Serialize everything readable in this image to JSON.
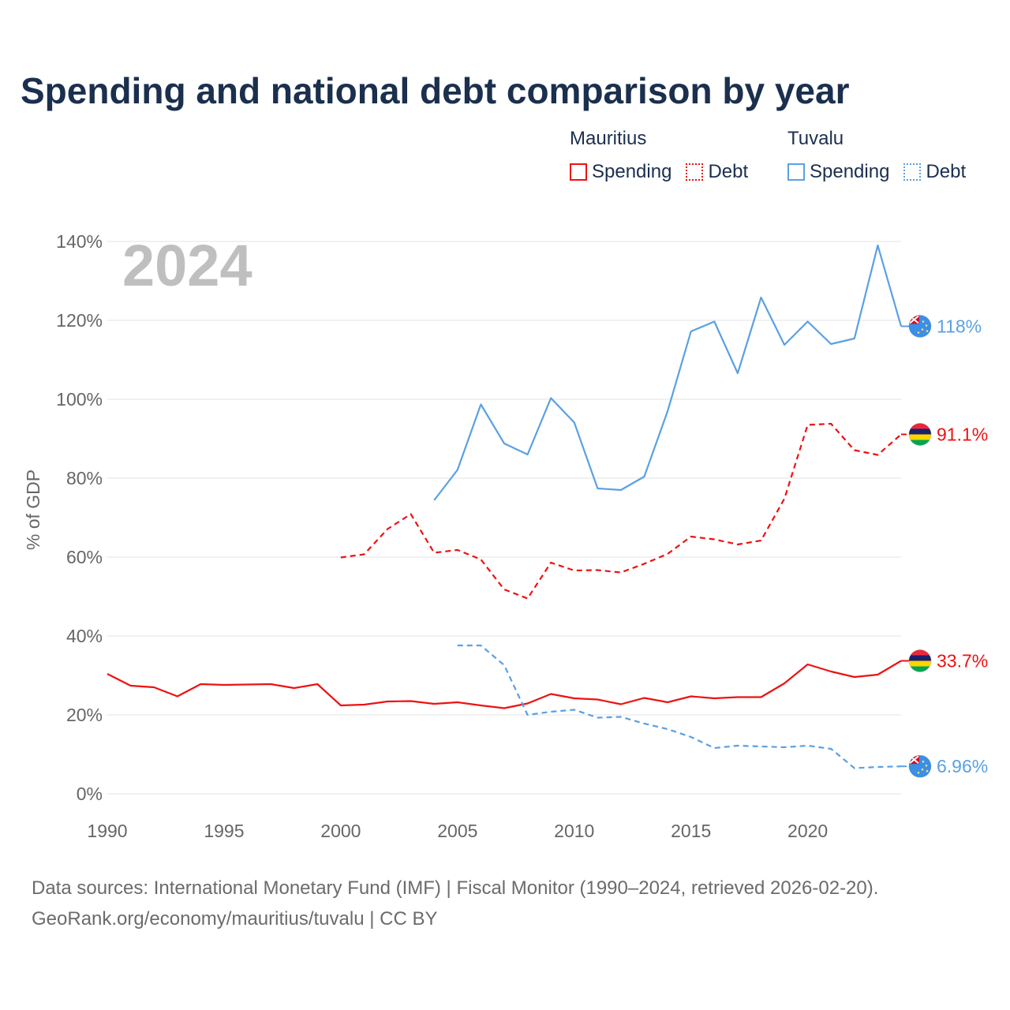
{
  "title": "Spending and national debt comparison by year",
  "legend": {
    "groups": [
      {
        "country": "Mauritius",
        "color": "#ee1111",
        "items": [
          {
            "label": "Spending",
            "style": "solid"
          },
          {
            "label": "Debt",
            "style": "dotted"
          }
        ]
      },
      {
        "country": "Tuvalu",
        "color": "#5aa0e4",
        "items": [
          {
            "label": "Spending",
            "style": "solid"
          },
          {
            "label": "Debt",
            "style": "dotted"
          }
        ]
      }
    ]
  },
  "chart_data": {
    "type": "line",
    "year_label": "2024",
    "ylabel": "% of GDP",
    "xlim": [
      1990,
      2024
    ],
    "ylim": [
      0,
      140
    ],
    "x_ticks": [
      1990,
      1995,
      2000,
      2005,
      2010,
      2015,
      2020
    ],
    "y_ticks": [
      0,
      20,
      40,
      60,
      80,
      100,
      120,
      140
    ],
    "y_tick_labels": [
      "0%",
      "20%",
      "40%",
      "60%",
      "80%",
      "100%",
      "120%",
      "140%"
    ],
    "grid": true,
    "series": [
      {
        "name": "Mauritius Spending",
        "country": "Mauritius",
        "color": "#ee1111",
        "dashed": false,
        "end_label": "33.7%",
        "x": [
          1990,
          1991,
          1992,
          1993,
          1994,
          1995,
          1996,
          1997,
          1998,
          1999,
          2000,
          2001,
          2002,
          2003,
          2004,
          2005,
          2006,
          2007,
          2008,
          2009,
          2010,
          2011,
          2012,
          2013,
          2014,
          2015,
          2016,
          2017,
          2018,
          2019,
          2020,
          2021,
          2022,
          2023,
          2024
        ],
        "y": [
          30.4,
          27.4,
          27.0,
          24.7,
          27.8,
          27.6,
          27.7,
          27.8,
          26.8,
          27.8,
          22.4,
          22.6,
          23.4,
          23.5,
          22.8,
          23.2,
          22.4,
          21.7,
          22.9,
          25.3,
          24.2,
          23.9,
          22.7,
          24.3,
          23.2,
          24.7,
          24.2,
          24.5,
          24.5,
          28.0,
          32.8,
          31.0,
          29.6,
          30.2,
          33.7
        ]
      },
      {
        "name": "Mauritius Debt",
        "country": "Mauritius",
        "color": "#ee1111",
        "dashed": true,
        "end_label": "91.1%",
        "x": [
          2000,
          2001,
          2002,
          2003,
          2004,
          2005,
          2006,
          2007,
          2008,
          2009,
          2010,
          2011,
          2012,
          2013,
          2014,
          2015,
          2016,
          2017,
          2018,
          2019,
          2020,
          2021,
          2022,
          2023,
          2024
        ],
        "y": [
          59.9,
          60.7,
          67.1,
          70.9,
          61.1,
          61.8,
          59.4,
          51.8,
          49.5,
          58.6,
          56.6,
          56.7,
          56.1,
          58.3,
          60.8,
          65.2,
          64.5,
          63.2,
          64.2,
          74.8,
          93.5,
          93.8,
          87.1,
          85.9,
          91.1
        ]
      },
      {
        "name": "Tuvalu Spending",
        "country": "Tuvalu",
        "color": "#5aa0e4",
        "dashed": false,
        "end_label": "118%",
        "x": [
          2004,
          2005,
          2006,
          2007,
          2008,
          2009,
          2010,
          2011,
          2012,
          2013,
          2014,
          2015,
          2016,
          2017,
          2018,
          2019,
          2020,
          2021,
          2022,
          2023,
          2024
        ],
        "y": [
          74.4,
          82.1,
          98.7,
          88.8,
          86.0,
          100.3,
          94.1,
          77.4,
          77.0,
          80.4,
          97.0,
          117.2,
          119.7,
          106.6,
          125.8,
          113.8,
          119.7,
          114.0,
          115.4,
          139.0,
          118.5
        ]
      },
      {
        "name": "Tuvalu Debt",
        "country": "Tuvalu",
        "color": "#5aa0e4",
        "dashed": true,
        "end_label": "6.96%",
        "x": [
          2005,
          2006,
          2007,
          2008,
          2009,
          2010,
          2011,
          2012,
          2013,
          2014,
          2015,
          2016,
          2017,
          2018,
          2019,
          2020,
          2021,
          2022,
          2023,
          2024
        ],
        "y": [
          37.6,
          37.6,
          32.6,
          20.0,
          20.8,
          21.3,
          19.3,
          19.5,
          17.8,
          16.4,
          14.4,
          11.6,
          12.2,
          12.0,
          11.8,
          12.2,
          11.4,
          6.5,
          6.8,
          6.96
        ]
      }
    ]
  },
  "footer": {
    "line1": "Data sources: International Monetary Fund (IMF) | Fiscal Monitor (1990–2024, retrieved 2026-02-20).",
    "line2": "GeoRank.org/economy/mauritius/tuvalu | CC BY"
  }
}
